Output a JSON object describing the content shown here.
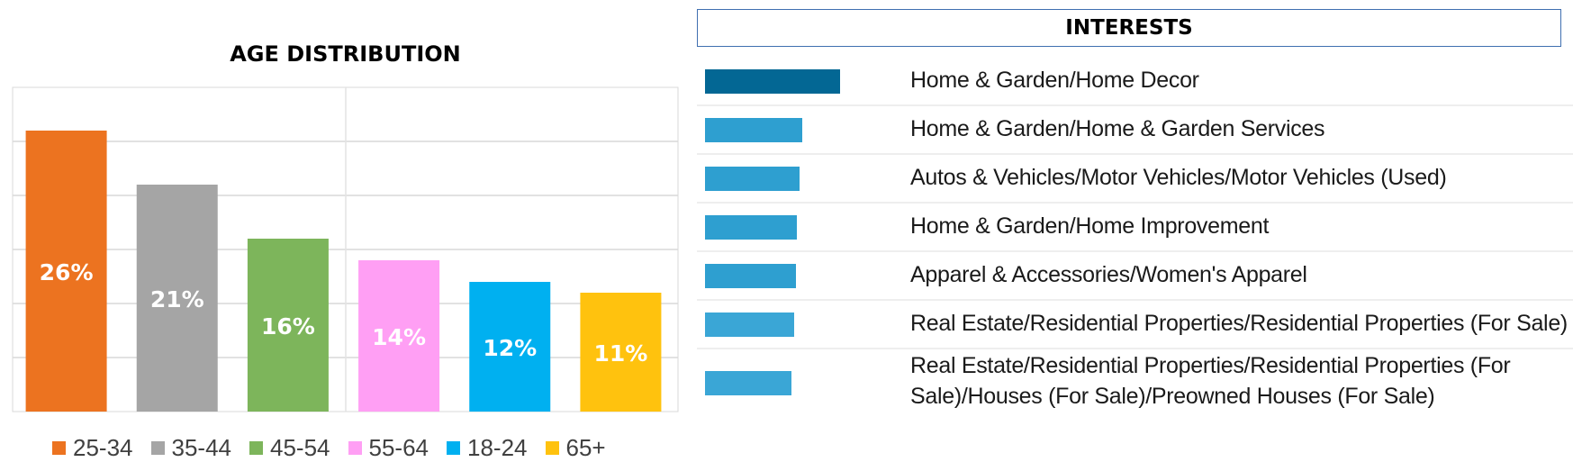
{
  "chart_data": [
    {
      "type": "bar",
      "title": "AGE DISTRIBUTION",
      "categories": [
        "25-34",
        "35-44",
        "45-54",
        "55-64",
        "18-24",
        "65+"
      ],
      "values": [
        26,
        21,
        16,
        14,
        12,
        11
      ],
      "data_labels": [
        "26%",
        "21%",
        "16%",
        "14%",
        "12%",
        "11%"
      ],
      "colors": [
        "#ec7320",
        "#a5a5a5",
        "#7db55b",
        "#ff9ff4",
        "#00b0f0",
        "#ffc20e"
      ],
      "legend": [
        "25-34",
        "35-44",
        "45-54",
        "55-64",
        "18-24",
        "65+"
      ],
      "legend_placement": "bottom",
      "ylim": [
        0,
        30
      ],
      "grid": true,
      "xlabel": "",
      "ylabel": ""
    },
    {
      "type": "bar",
      "orientation": "horizontal",
      "title": "INTERESTS",
      "categories": [
        "Home & Garden/Home Decor",
        "Home & Garden/Home & Garden Services",
        "Autos & Vehicles/Motor Vehicles/Motor Vehicles (Used)",
        "Home & Garden/Home Improvement",
        "Apparel & Accessories/Women's Apparel",
        "Real Estate/Residential Properties/Residential Properties (For Sale)",
        "Real Estate/Residential Properties/Residential Properties (For Sale)/Houses (For Sale)/Preowned Houses (For Sale)"
      ],
      "values": [
        100,
        72,
        70,
        68,
        67,
        66,
        64
      ],
      "colors": [
        "#036794",
        "#2e9fd0",
        "#2e9fd0",
        "#2e9fd0",
        "#2e9fd0",
        "#3aa6d6",
        "#3aa6d6"
      ],
      "xlim": [
        0,
        100
      ],
      "grid": false
    }
  ]
}
